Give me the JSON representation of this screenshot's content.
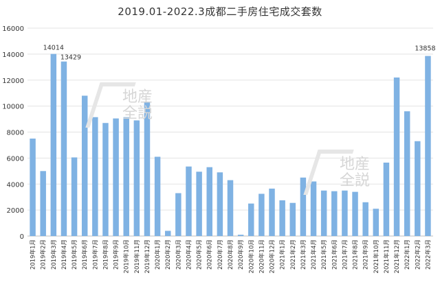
{
  "chart_data": {
    "type": "bar",
    "title": "2019.01-2022.3成都二手房住宅成交套数",
    "ylim": [
      0,
      16000
    ],
    "yticks": [
      0,
      2000,
      4000,
      6000,
      8000,
      10000,
      12000,
      14000,
      16000
    ],
    "grid": true,
    "color": "#7fb2e3",
    "categories": [
      "2019年1月",
      "2019年2月",
      "2019年3月",
      "2019年4月",
      "2019年5月",
      "2019年6月",
      "2019年7月",
      "2019年8月",
      "2019年9月",
      "2019年10月",
      "2019年11月",
      "2019年12月",
      "2020年1月",
      "2020年2月",
      "2020年3月",
      "2020年4月",
      "2020年5月",
      "2020年6月",
      "2020年7月",
      "2020年8月",
      "2020年9月",
      "2020年10月",
      "2020年11月",
      "2020年12月",
      "2021年1月",
      "2021年2月",
      "2021年3月",
      "2021年4月",
      "2021年5月",
      "2021年6月",
      "2021年7月",
      "2021年8月",
      "2021年9月",
      "2021年10月",
      "2021年11月",
      "2021年12月",
      "2022年1月",
      "2022年2月",
      "2022年3月"
    ],
    "values": [
      7500,
      5000,
      14014,
      13429,
      6050,
      10800,
      9150,
      8700,
      9050,
      9150,
      8900,
      10300,
      6100,
      400,
      3300,
      5350,
      4950,
      5300,
      4900,
      4300,
      100,
      2500,
      3250,
      3650,
      2750,
      2550,
      4500,
      4200,
      3500,
      3450,
      3500,
      3400,
      2600,
      2100,
      5650,
      12200,
      9600,
      7300,
      13858
    ],
    "data_labels": {
      "2": "14014",
      "3": "13429",
      "38": "13858"
    }
  },
  "watermark": {
    "line1": "地産",
    "line2": "全説"
  }
}
